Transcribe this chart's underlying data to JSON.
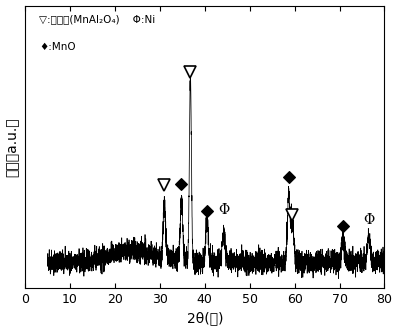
{
  "xlim": [
    0,
    80
  ],
  "xlabel": "2θ(度)",
  "ylabel": "强度（a.u.）",
  "legend_line1": "▽:尖晶石(MnAl₂O₄)    Φ:Ni",
  "legend_line2": "◆:MnO",
  "background_color": "#ffffff",
  "spinel_peaks": [
    31.0,
    36.8,
    59.5
  ],
  "ni_peaks": [
    44.2,
    76.5
  ],
  "mno_peaks": [
    34.8,
    40.5,
    58.7,
    70.8
  ],
  "noise_seed": 42,
  "line_color": "#000000"
}
